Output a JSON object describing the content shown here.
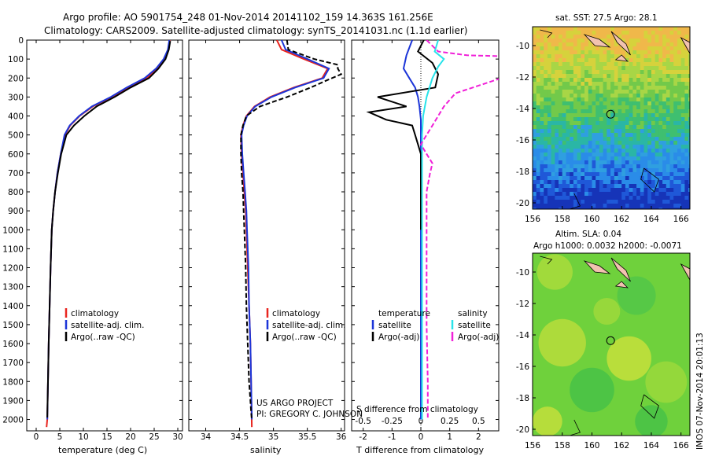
{
  "header": {
    "line1": "Argo profile: AO 5901754_248 01-Nov-2014 20141102_159 14.363S 161.256E",
    "line2": "Climatology: CARS2009. Satellite-adjusted climatology: synTS_20141031.nc (1.1d earlier)"
  },
  "colors": {
    "climatology": "#e8251f",
    "satellite": "#1c35d8",
    "argo": "#000000",
    "salinity_satellite": "#28e3ea",
    "salinity_argo": "#f020d8",
    "land": "#f2c2b0"
  },
  "chart_data": [
    {
      "type": "line",
      "id": "temperature",
      "xlabel": "temperature (deg C)",
      "xlim": [
        -2,
        31
      ],
      "xticks": [
        0,
        5,
        10,
        15,
        20,
        25,
        30
      ],
      "ylim": [
        0,
        2060
      ],
      "yticks": [
        0,
        100,
        200,
        300,
        400,
        500,
        600,
        700,
        800,
        900,
        1000,
        1100,
        1200,
        1300,
        1400,
        1500,
        1600,
        1700,
        1800,
        1900,
        2000
      ],
      "legend": [
        "climatology",
        "satellite-adj. clim.",
        "Argo(..raw -QC)"
      ],
      "series": [
        {
          "name": "climatology",
          "color": "#e8251f",
          "x": [
            28.3,
            28.0,
            27.2,
            25.8,
            23.4,
            19.5,
            16.0,
            12.0,
            9.2,
            7.2,
            6.1,
            5.2,
            4.5,
            4.0,
            3.6,
            3.3,
            3.05,
            2.85,
            2.65,
            2.5,
            2.35,
            2.2
          ],
          "y": [
            0,
            50,
            100,
            150,
            200,
            250,
            300,
            350,
            400,
            450,
            500,
            600,
            700,
            800,
            900,
            1000,
            1200,
            1400,
            1600,
            1800,
            2000,
            2040
          ]
        },
        {
          "name": "satellite-adj. clim.",
          "color": "#1c35d8",
          "x": [
            28.2,
            27.9,
            27.0,
            25.4,
            23.0,
            19.2,
            15.8,
            11.8,
            9.1,
            7.1,
            6.0,
            5.2,
            4.5,
            4.0,
            3.6,
            3.3,
            3.05,
            2.85,
            2.65,
            2.5,
            2.35
          ],
          "y": [
            0,
            50,
            100,
            150,
            200,
            250,
            300,
            350,
            400,
            450,
            500,
            600,
            700,
            800,
            900,
            1000,
            1200,
            1400,
            1600,
            1800,
            2000
          ]
        },
        {
          "name": "Argo(..raw -QC)",
          "color": "#000000",
          "x": [
            28.4,
            28.1,
            27.4,
            25.9,
            23.9,
            20.0,
            16.6,
            12.8,
            10.2,
            8.0,
            6.4,
            5.3,
            4.6,
            4.0,
            3.6,
            3.3,
            3.05,
            2.85,
            2.65,
            2.5,
            2.35
          ],
          "y": [
            5,
            50,
            100,
            150,
            200,
            250,
            300,
            350,
            400,
            450,
            500,
            600,
            700,
            800,
            900,
            1000,
            1200,
            1400,
            1600,
            1800,
            1990
          ]
        }
      ]
    },
    {
      "type": "line",
      "id": "salinity",
      "xlabel": "salinity",
      "xlim": [
        33.75,
        36.05
      ],
      "xticks": [
        34,
        34.5,
        35,
        35.5,
        36
      ],
      "ylim": [
        0,
        2060
      ],
      "legend": [
        "climatology",
        "satellite-adj. clim.",
        "Argo(..raw -QC)"
      ],
      "credit": [
        "US ARGO PROJECT",
        "PI: GREGORY C. JOHNSON"
      ],
      "series": [
        {
          "name": "climatology",
          "color": "#e8251f",
          "x": [
            35.05,
            35.12,
            35.45,
            35.8,
            35.72,
            35.3,
            34.95,
            34.72,
            34.6,
            34.55,
            34.52,
            34.53,
            34.55,
            34.57,
            34.59,
            34.6,
            34.62,
            34.64,
            34.66,
            34.67,
            34.68
          ],
          "y": [
            0,
            50,
            100,
            150,
            200,
            250,
            300,
            350,
            400,
            450,
            500,
            600,
            700,
            800,
            900,
            1000,
            1200,
            1400,
            1600,
            1800,
            2040
          ]
        },
        {
          "name": "satellite-adj. clim.",
          "color": "#1c35d8",
          "x": [
            35.12,
            35.18,
            35.5,
            35.82,
            35.74,
            35.32,
            34.97,
            34.73,
            34.61,
            34.56,
            34.53,
            34.54,
            34.56,
            34.58,
            34.6,
            34.61,
            34.63,
            34.64,
            34.66,
            34.67,
            34.68
          ],
          "y": [
            0,
            50,
            100,
            150,
            200,
            250,
            300,
            350,
            400,
            450,
            500,
            600,
            700,
            800,
            900,
            1000,
            1200,
            1400,
            1600,
            1800,
            2000
          ]
        },
        {
          "name": "Argo(..raw -QC)",
          "color": "#000000",
          "x": [
            35.2,
            35.22,
            35.6,
            35.95,
            35.95,
            36.0,
            35.8,
            35.55,
            35.2,
            34.8,
            34.6,
            34.55,
            34.52,
            34.52,
            34.53,
            34.55,
            34.56,
            34.57,
            34.59,
            34.6,
            34.62,
            34.64,
            34.66,
            34.67,
            34.68
          ],
          "y": [
            0,
            50,
            100,
            130,
            150,
            180,
            210,
            250,
            300,
            350,
            400,
            450,
            500,
            600,
            700,
            800,
            900,
            1000,
            1200,
            1400,
            1600,
            1800,
            1900,
            1960,
            2000
          ]
        }
      ]
    },
    {
      "type": "line",
      "id": "differences",
      "xlabel_top": "S difference from climatology",
      "xlabel": "T difference from climatology",
      "xticks_T": [
        -2,
        -1,
        0,
        1,
        2
      ],
      "xticks_S": [
        -0.5,
        -0.25,
        0,
        0.25,
        0.5
      ],
      "xlim_T": [
        -2.4,
        2.7
      ],
      "ylim": [
        0,
        2060
      ],
      "legend_left_title": "temperature",
      "legend_right_title": "salinity",
      "legend_left": [
        "satellite",
        "Argo(-adj)"
      ],
      "legend_right": [
        "satellite",
        "Argo(-adj)"
      ],
      "series": [
        {
          "name": "T satellite",
          "color": "#1c35d8",
          "x": [
            -0.3,
            -0.5,
            -0.6,
            -0.4,
            -0.2,
            -0.1,
            -0.05,
            0,
            0,
            0,
            0,
            0,
            0,
            0
          ],
          "y": [
            0,
            80,
            150,
            200,
            250,
            300,
            350,
            420,
            500,
            600,
            700,
            1000,
            1500,
            2000
          ]
        },
        {
          "name": "T Argo(-adj)",
          "color": "#000000",
          "x": [
            0.1,
            -0.1,
            0.4,
            0.6,
            0.5,
            -1.5,
            -0.5,
            -1.8,
            -1.2,
            -0.3,
            -0.2,
            0,
            0,
            0
          ],
          "y": [
            0,
            60,
            120,
            180,
            250,
            300,
            350,
            380,
            420,
            450,
            500,
            600,
            800,
            1000
          ]
        },
        {
          "name": "S satellite",
          "color": "#28e3ea",
          "x": [
            0.15,
            0.12,
            0.2,
            0.15,
            0.1,
            0.05,
            0.02,
            0.01,
            0.01,
            0.01,
            0.01,
            0.01,
            0.01
          ],
          "y": [
            0,
            60,
            100,
            140,
            200,
            300,
            400,
            500,
            700,
            1000,
            1500,
            1800,
            2000
          ]
        },
        {
          "name": "S Argo(-adj)",
          "color": "#f020d8",
          "x": [
            0.05,
            0.15,
            0.4,
            1.6,
            1.1,
            1.5,
            0.8,
            0.6,
            0.3,
            0.2,
            0.15,
            0.1,
            0.05,
            0.0,
            0.05,
            0.1,
            0.08,
            0.05,
            0.05,
            0.05,
            0.06,
            0.06
          ],
          "y": [
            0,
            60,
            80,
            100,
            130,
            150,
            180,
            220,
            280,
            350,
            400,
            450,
            500,
            550,
            600,
            650,
            700,
            800,
            1000,
            1500,
            1800,
            1990
          ]
        }
      ]
    },
    {
      "type": "heatmap",
      "id": "sst_map",
      "title": "sat. SST: 27.5 Argo: 28.1",
      "xticks": [
        156,
        158,
        160,
        162,
        164,
        166
      ],
      "yticks": [
        -10,
        -12,
        -14,
        -16,
        -18,
        -20
      ],
      "xlim": [
        156,
        166.6
      ],
      "ylim": [
        -20.4,
        -8.8
      ],
      "marker": {
        "lon": 161.256,
        "lat": -14.363
      }
    },
    {
      "type": "heatmap",
      "id": "sla_map",
      "title": "Altim. SLA: 0.04",
      "subtitle": "Argo h1000: 0.0032 h2000: -0.0071",
      "xticks": [
        156,
        158,
        160,
        162,
        164,
        166
      ],
      "yticks": [
        -10,
        -12,
        -14,
        -16,
        -18,
        -20
      ],
      "xlim": [
        156,
        166.6
      ],
      "ylim": [
        -20.4,
        -8.8
      ],
      "marker": {
        "lon": 161.256,
        "lat": -14.363
      }
    }
  ],
  "footer": {
    "timestamp": "IMOS 07-Nov-2014 20:01:13"
  }
}
